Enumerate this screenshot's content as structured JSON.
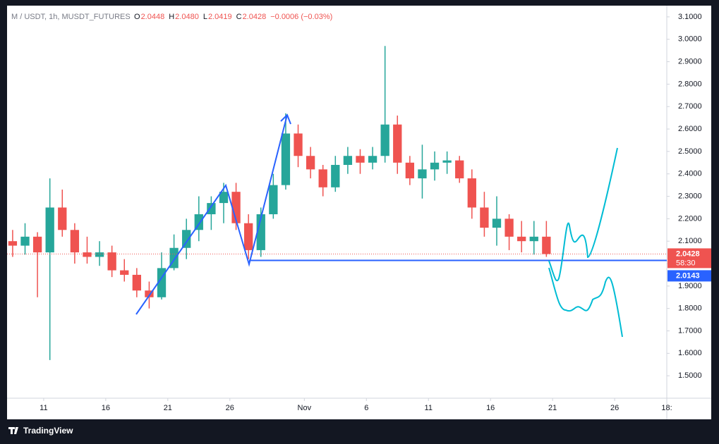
{
  "header": {
    "symbol": "M / USDT, 1h, MUSDT_FUTURES",
    "ohlc": [
      {
        "key": "O",
        "text": "2.0448"
      },
      {
        "key": "H",
        "text": "2.0480"
      },
      {
        "key": "L",
        "text": "2.0419"
      },
      {
        "key": "C",
        "text": "2.0428"
      }
    ],
    "change": "−0.0006 (−0.03%)"
  },
  "chart_data": {
    "type": "candlestick",
    "up_color": "#26a69a",
    "down_color": "#ef5350",
    "x": [
      8.5,
      9.5,
      10.5,
      11.5,
      12.5,
      13.5,
      14.5,
      15.5,
      16.5,
      17.5,
      18.5,
      19.5,
      20.5,
      21.5,
      22.5,
      23.5,
      24.5,
      25.5,
      26.5,
      27.5,
      28.5,
      29.5,
      30.5,
      31.5,
      32.5,
      33.5,
      34.5,
      35.5,
      36.5,
      37.5,
      38.5,
      39.5,
      40.5,
      41.5,
      42.5,
      43.5,
      44.5,
      45.5,
      46.5,
      47.5,
      48.5,
      49.5,
      50.5,
      51.5
    ],
    "open": [
      2.1,
      2.08,
      2.12,
      2.05,
      2.25,
      2.15,
      2.05,
      2.03,
      2.05,
      1.97,
      1.95,
      1.88,
      1.85,
      1.98,
      2.07,
      2.15,
      2.22,
      2.27,
      2.32,
      2.18,
      2.06,
      2.22,
      2.35,
      2.58,
      2.48,
      2.42,
      2.34,
      2.44,
      2.48,
      2.45,
      2.48,
      2.62,
      2.45,
      2.38,
      2.42,
      2.45,
      2.46,
      2.38,
      2.25,
      2.16,
      2.2,
      2.12,
      2.1,
      2.12
    ],
    "high": [
      2.15,
      2.18,
      2.14,
      2.38,
      2.33,
      2.18,
      2.12,
      2.1,
      2.08,
      2.02,
      1.98,
      1.92,
      2.05,
      2.13,
      2.2,
      2.3,
      2.3,
      2.36,
      2.36,
      2.22,
      2.25,
      2.4,
      2.67,
      2.62,
      2.52,
      2.44,
      2.48,
      2.52,
      2.51,
      2.52,
      2.97,
      2.66,
      2.48,
      2.53,
      2.5,
      2.5,
      2.48,
      2.42,
      2.32,
      2.3,
      2.22,
      2.19,
      2.19,
      2.19
    ],
    "low": [
      2.03,
      2.04,
      1.85,
      1.57,
      2.12,
      2.0,
      2.0,
      1.99,
      1.94,
      1.92,
      1.85,
      1.8,
      1.84,
      1.97,
      2.02,
      2.1,
      2.15,
      2.18,
      2.15,
      2.02,
      2.03,
      2.2,
      2.33,
      2.43,
      2.38,
      2.3,
      2.32,
      2.4,
      2.4,
      2.42,
      2.45,
      2.4,
      2.35,
      2.29,
      2.37,
      2.4,
      2.36,
      2.2,
      2.12,
      2.08,
      2.06,
      2.05,
      2.04,
      2.03
    ],
    "close": [
      2.08,
      2.12,
      2.05,
      2.25,
      2.15,
      2.05,
      2.03,
      2.05,
      1.97,
      1.95,
      1.88,
      1.85,
      1.98,
      2.07,
      2.15,
      2.22,
      2.27,
      2.32,
      2.18,
      2.06,
      2.22,
      2.35,
      2.58,
      2.48,
      2.42,
      2.34,
      2.44,
      2.48,
      2.45,
      2.48,
      2.62,
      2.45,
      2.38,
      2.42,
      2.45,
      2.46,
      2.38,
      2.25,
      2.16,
      2.2,
      2.12,
      2.1,
      2.12,
      2.0428
    ],
    "xlim": [
      8.05,
      61.2
    ],
    "xticks": [
      {
        "value": 11,
        "label": "11"
      },
      {
        "value": 16,
        "label": "16"
      },
      {
        "value": 21,
        "label": "21"
      },
      {
        "value": 26,
        "label": "26"
      },
      {
        "value": 32,
        "label": "Nov"
      },
      {
        "value": 37,
        "label": "6"
      },
      {
        "value": 42,
        "label": "11"
      },
      {
        "value": 47,
        "label": "16"
      },
      {
        "value": 52,
        "label": "21"
      },
      {
        "value": 57,
        "label": "26"
      },
      {
        "value": 61.2,
        "label": "18:"
      }
    ],
    "ylim": [
      1.4,
      3.15
    ],
    "yticks": [
      {
        "value": 1.5,
        "label": "1.5000"
      },
      {
        "value": 1.6,
        "label": "1.6000"
      },
      {
        "value": 1.7,
        "label": "1.7000"
      },
      {
        "value": 1.8,
        "label": "1.8000"
      },
      {
        "value": 1.9,
        "label": "1.9000"
      },
      {
        "value": 2.0,
        "label": "2.0000"
      },
      {
        "value": 2.1,
        "label": "2.1000"
      },
      {
        "value": 2.2,
        "label": "2.2000"
      },
      {
        "value": 2.3,
        "label": "2.3000"
      },
      {
        "value": 2.4,
        "label": "2.4000"
      },
      {
        "value": 2.5,
        "label": "2.5000"
      },
      {
        "value": 2.6,
        "label": "2.6000"
      },
      {
        "value": 2.7,
        "label": "2.7000"
      },
      {
        "value": 2.8,
        "label": "2.8000"
      },
      {
        "value": 2.9,
        "label": "2.9000"
      },
      {
        "value": 3.0,
        "label": "3.0000"
      },
      {
        "value": 3.1,
        "label": "3.1000"
      }
    ],
    "last_price": {
      "value": 2.0428,
      "label": "2.0428",
      "countdown": "58:30"
    },
    "level": {
      "value": 2.0143,
      "label": "2.0143"
    }
  },
  "footer": {
    "brand": "TradingView"
  }
}
